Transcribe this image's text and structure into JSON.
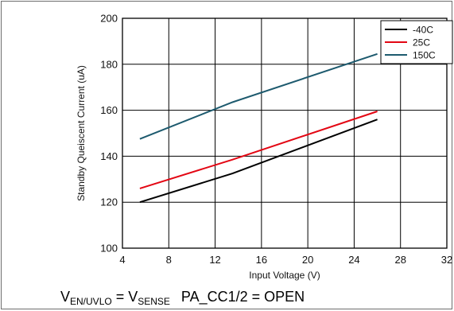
{
  "chart_data": {
    "type": "line",
    "xlabel": "Input Voltage (V)",
    "ylabel": "Standby Queiscent Current (uA)",
    "xlim": [
      4,
      32
    ],
    "ylim": [
      100,
      200
    ],
    "xticks": [
      "4",
      "8",
      "12",
      "16",
      "20",
      "24",
      "28",
      "32"
    ],
    "yticks": [
      "100",
      "120",
      "140",
      "160",
      "180",
      "200"
    ],
    "grid": true,
    "legend_position": "top-right",
    "series": [
      {
        "name": "-40C",
        "color": "#000000",
        "points": [
          [
            5.5,
            120
          ],
          [
            13.5,
            132.5
          ],
          [
            26,
            156
          ]
        ]
      },
      {
        "name": "25C",
        "color": "#e30613",
        "points": [
          [
            5.5,
            126
          ],
          [
            13.5,
            138.5
          ],
          [
            26,
            159.5
          ]
        ]
      },
      {
        "name": "150C",
        "color": "#1d5a6e",
        "points": [
          [
            5.5,
            147.5
          ],
          [
            13.5,
            163.5
          ],
          [
            26,
            184.5
          ]
        ]
      }
    ]
  },
  "caption": {
    "v1": "V",
    "v1_sub": "EN/UVLO",
    "equals": " = ",
    "v2": "V",
    "v2_sub": "SENSE",
    "pin": "PA_CC1/2 = OPEN"
  }
}
